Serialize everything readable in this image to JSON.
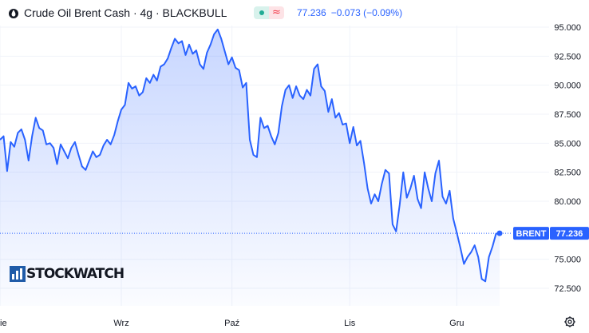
{
  "header": {
    "title": "Crude Oil Brent Cash · 4g · BLACKBULL",
    "icon": "oil-drop-icon",
    "badge_wave": "≈",
    "price": "77.236",
    "change": "−0.073 (−0.09%)"
  },
  "colors": {
    "line": "#2962ff",
    "badge_green": "#22ab94",
    "badge_red": "#f23645",
    "price_label_bg": "#2962ff"
  },
  "logo": {
    "text": "STOCKWATCH"
  },
  "chart_data": {
    "type": "area",
    "title": "",
    "xlabel": "",
    "ylabel": "",
    "ylim": [
      71.0,
      96.0
    ],
    "yticks": [
      "95.000",
      "92.500",
      "90.000",
      "87.500",
      "85.000",
      "82.500",
      "80.000",
      "75.000",
      "72.500"
    ],
    "xticks": [
      {
        "label": "ie",
        "x": 0
      },
      {
        "label": "Wrz",
        "x": 34
      },
      {
        "label": "Paź",
        "x": 65
      },
      {
        "label": "Lis",
        "x": 98
      },
      {
        "label": "Gru",
        "x": 128
      }
    ],
    "x_unit": "trading days from the left edge (4h bars)",
    "series": [
      {
        "name": "BRENT",
        "last_value": "77.236",
        "points": [
          [
            0,
            85.3
          ],
          [
            1,
            85.6
          ],
          [
            2,
            82.6
          ],
          [
            3,
            85.1
          ],
          [
            4,
            84.7
          ],
          [
            5,
            85.9
          ],
          [
            6,
            86.2
          ],
          [
            7,
            85.3
          ],
          [
            8,
            83.5
          ],
          [
            9,
            85.6
          ],
          [
            10,
            87.2
          ],
          [
            11,
            86.3
          ],
          [
            12,
            86.1
          ],
          [
            13,
            84.9
          ],
          [
            14,
            85.0
          ],
          [
            15,
            84.6
          ],
          [
            16,
            83.2
          ],
          [
            17,
            84.9
          ],
          [
            18,
            84.3
          ],
          [
            19,
            83.7
          ],
          [
            20,
            84.6
          ],
          [
            21,
            85.1
          ],
          [
            22,
            84.0
          ],
          [
            23,
            83.0
          ],
          [
            24,
            82.7
          ],
          [
            25,
            83.5
          ],
          [
            26,
            84.3
          ],
          [
            27,
            83.8
          ],
          [
            28,
            84.0
          ],
          [
            29,
            84.8
          ],
          [
            30,
            85.3
          ],
          [
            31,
            84.9
          ],
          [
            32,
            85.7
          ],
          [
            33,
            86.9
          ],
          [
            34,
            87.9
          ],
          [
            35,
            88.3
          ],
          [
            36,
            90.2
          ],
          [
            37,
            89.7
          ],
          [
            38,
            89.9
          ],
          [
            39,
            89.1
          ],
          [
            40,
            89.4
          ],
          [
            41,
            90.6
          ],
          [
            42,
            90.2
          ],
          [
            43,
            90.9
          ],
          [
            44,
            90.4
          ],
          [
            45,
            91.6
          ],
          [
            46,
            91.8
          ],
          [
            47,
            92.3
          ],
          [
            48,
            93.2
          ],
          [
            49,
            94.0
          ],
          [
            50,
            93.6
          ],
          [
            51,
            93.8
          ],
          [
            52,
            92.6
          ],
          [
            53,
            93.5
          ],
          [
            54,
            92.7
          ],
          [
            55,
            93.0
          ],
          [
            56,
            91.8
          ],
          [
            57,
            91.4
          ],
          [
            58,
            92.8
          ],
          [
            59,
            93.5
          ],
          [
            60,
            94.4
          ],
          [
            61,
            94.8
          ],
          [
            62,
            94.0
          ],
          [
            63,
            92.9
          ],
          [
            64,
            91.8
          ],
          [
            65,
            92.4
          ],
          [
            66,
            91.5
          ],
          [
            67,
            91.3
          ],
          [
            68,
            89.8
          ],
          [
            69,
            90.2
          ],
          [
            70,
            85.3
          ],
          [
            71,
            84.0
          ],
          [
            72,
            83.8
          ],
          [
            73,
            87.2
          ],
          [
            74,
            86.3
          ],
          [
            75,
            86.5
          ],
          [
            76,
            85.6
          ],
          [
            77,
            84.9
          ],
          [
            78,
            85.9
          ],
          [
            79,
            88.2
          ],
          [
            80,
            89.6
          ],
          [
            81,
            90.0
          ],
          [
            82,
            88.9
          ],
          [
            83,
            89.9
          ],
          [
            84,
            89.1
          ],
          [
            85,
            88.8
          ],
          [
            86,
            89.6
          ],
          [
            87,
            89.1
          ],
          [
            88,
            91.4
          ],
          [
            89,
            91.8
          ],
          [
            90,
            89.9
          ],
          [
            91,
            89.5
          ],
          [
            92,
            87.7
          ],
          [
            93,
            88.8
          ],
          [
            94,
            87.2
          ],
          [
            95,
            87.6
          ],
          [
            96,
            86.6
          ],
          [
            97,
            86.7
          ],
          [
            98,
            85.0
          ],
          [
            99,
            86.4
          ],
          [
            100,
            84.8
          ],
          [
            101,
            85.2
          ],
          [
            102,
            83.3
          ],
          [
            103,
            81.1
          ],
          [
            104,
            79.8
          ],
          [
            105,
            80.6
          ],
          [
            106,
            80.0
          ],
          [
            107,
            81.5
          ],
          [
            108,
            82.7
          ],
          [
            109,
            82.4
          ],
          [
            110,
            78.0
          ],
          [
            111,
            77.4
          ],
          [
            112,
            79.7
          ],
          [
            113,
            82.5
          ],
          [
            114,
            80.3
          ],
          [
            115,
            81.1
          ],
          [
            116,
            82.2
          ],
          [
            117,
            80.2
          ],
          [
            118,
            79.4
          ],
          [
            119,
            82.5
          ],
          [
            120,
            81.1
          ],
          [
            121,
            80.0
          ],
          [
            122,
            82.4
          ],
          [
            123,
            83.5
          ],
          [
            124,
            80.4
          ],
          [
            125,
            79.8
          ],
          [
            126,
            80.9
          ],
          [
            127,
            78.5
          ],
          [
            128,
            77.3
          ],
          [
            129,
            76.0
          ],
          [
            130,
            74.6
          ],
          [
            131,
            75.2
          ],
          [
            132,
            75.6
          ],
          [
            133,
            76.2
          ],
          [
            134,
            75.2
          ],
          [
            135,
            73.3
          ],
          [
            136,
            73.1
          ],
          [
            137,
            75.2
          ],
          [
            138,
            76.1
          ],
          [
            139,
            77.2
          ],
          [
            140,
            77.24
          ]
        ]
      }
    ]
  }
}
